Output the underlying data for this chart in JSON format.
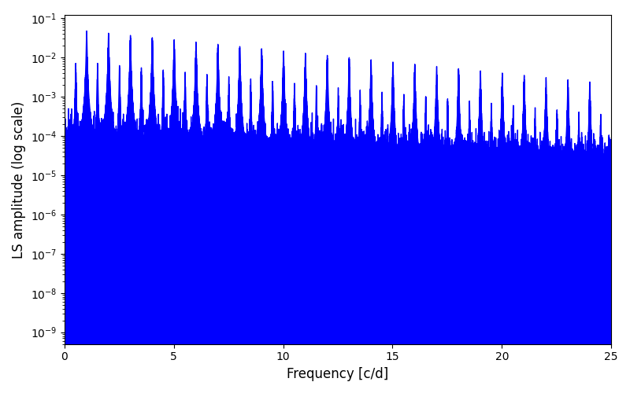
{
  "title": "",
  "xlabel": "Frequency [c/d]",
  "ylabel": "LS amplitude (log scale)",
  "color": "#0000ff",
  "xmin": 0,
  "xmax": 25,
  "ymin": 5e-10,
  "ymax": 0.12,
  "figsize": [
    8.0,
    5.0
  ],
  "dpi": 100,
  "seed": 42,
  "n_points": 20000,
  "background_color": "#ffffff"
}
